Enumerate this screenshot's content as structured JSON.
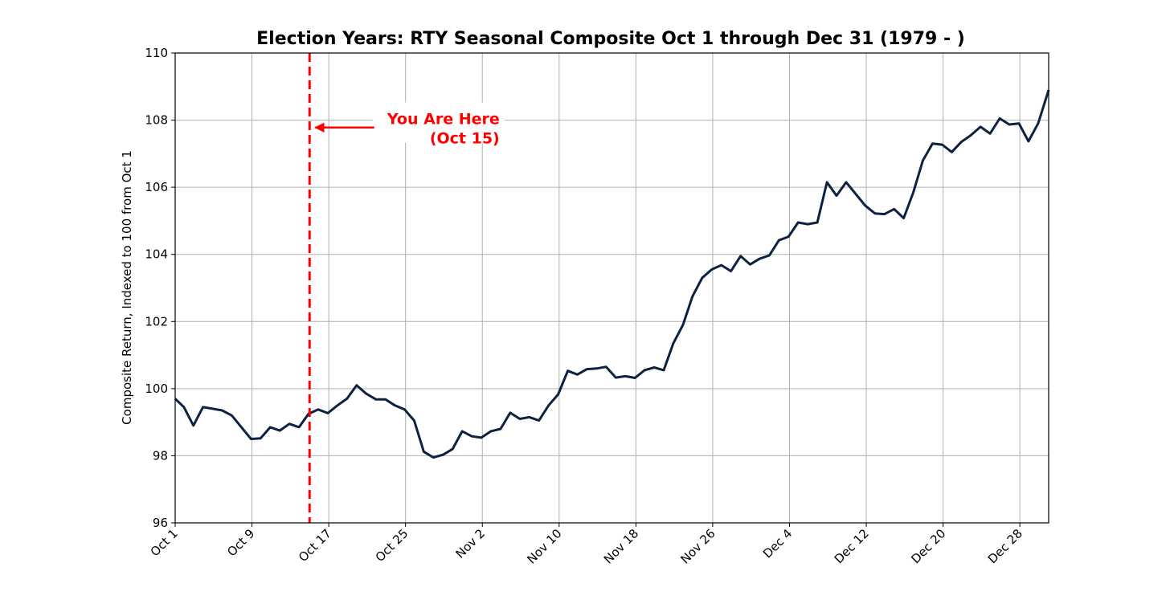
{
  "chart_data": {
    "type": "line",
    "title": "Election Years: RTY Seasonal Composite Oct 1 through Dec 31 (1979 - )",
    "xlabel": "",
    "ylabel": "Composite Return, Indexed to 100 from Oct 1",
    "ylim": [
      96,
      110
    ],
    "yticks": [
      96,
      98,
      100,
      102,
      104,
      106,
      108,
      110
    ],
    "xlim": [
      0,
      91
    ],
    "xticks": [
      {
        "x": 0,
        "label": "Oct 1"
      },
      {
        "x": 8,
        "label": "Oct 9"
      },
      {
        "x": 16,
        "label": "Oct 17"
      },
      {
        "x": 24,
        "label": "Oct 25"
      },
      {
        "x": 32,
        "label": "Nov 2"
      },
      {
        "x": 40,
        "label": "Nov 10"
      },
      {
        "x": 48,
        "label": "Nov 18"
      },
      {
        "x": 56,
        "label": "Nov 26"
      },
      {
        "x": 64,
        "label": "Dec 4"
      },
      {
        "x": 72,
        "label": "Dec 12"
      },
      {
        "x": 80,
        "label": "Dec 20"
      },
      {
        "x": 88,
        "label": "Dec 28"
      }
    ],
    "grid": true,
    "series": [
      {
        "color": "#0d2240",
        "points": [
          [
            0,
            99.7
          ],
          [
            0.9,
            99.45
          ],
          [
            1.9,
            98.9
          ],
          [
            2.9,
            99.45
          ],
          [
            3.9,
            99.4
          ],
          [
            4.9,
            99.35
          ],
          [
            5.9,
            99.2
          ],
          [
            6.9,
            98.85
          ],
          [
            7.9,
            98.5
          ],
          [
            8.9,
            98.52
          ],
          [
            9.9,
            98.85
          ],
          [
            10.9,
            98.75
          ],
          [
            11.9,
            98.95
          ],
          [
            12.9,
            98.85
          ],
          [
            13.9,
            99.25
          ],
          [
            14.9,
            99.38
          ],
          [
            15.9,
            99.27
          ],
          [
            16.9,
            99.5
          ],
          [
            17.9,
            99.7
          ],
          [
            18.9,
            100.1
          ],
          [
            19.9,
            99.85
          ],
          [
            20.9,
            99.68
          ],
          [
            21.9,
            99.68
          ],
          [
            22.9,
            99.5
          ],
          [
            23.9,
            99.38
          ],
          [
            24.9,
            99.05
          ],
          [
            25.9,
            98.12
          ],
          [
            26.9,
            97.95
          ],
          [
            27.9,
            98.03
          ],
          [
            28.9,
            98.2
          ],
          [
            29.9,
            98.73
          ],
          [
            30.9,
            98.58
          ],
          [
            31.9,
            98.54
          ],
          [
            32.9,
            98.73
          ],
          [
            33.9,
            98.8
          ],
          [
            34.9,
            99.28
          ],
          [
            35.9,
            99.1
          ],
          [
            36.9,
            99.15
          ],
          [
            37.9,
            99.05
          ],
          [
            38.9,
            99.5
          ],
          [
            39.9,
            99.83
          ],
          [
            40.9,
            100.53
          ],
          [
            41.9,
            100.42
          ],
          [
            42.9,
            100.58
          ],
          [
            43.9,
            100.6
          ],
          [
            44.9,
            100.65
          ],
          [
            45.9,
            100.33
          ],
          [
            46.9,
            100.37
          ],
          [
            47.9,
            100.32
          ],
          [
            48.9,
            100.55
          ],
          [
            49.9,
            100.63
          ],
          [
            50.9,
            100.55
          ],
          [
            51.9,
            101.35
          ],
          [
            52.9,
            101.9
          ],
          [
            53.9,
            102.75
          ],
          [
            54.9,
            103.3
          ],
          [
            55.9,
            103.55
          ],
          [
            56.9,
            103.68
          ],
          [
            57.9,
            103.5
          ],
          [
            58.9,
            103.95
          ],
          [
            59.9,
            103.7
          ],
          [
            60.9,
            103.87
          ],
          [
            61.9,
            103.97
          ],
          [
            62.9,
            104.42
          ],
          [
            63.9,
            104.53
          ],
          [
            64.9,
            104.95
          ],
          [
            65.9,
            104.9
          ],
          [
            66.9,
            104.95
          ],
          [
            67.9,
            106.15
          ],
          [
            68.9,
            105.75
          ],
          [
            69.9,
            106.15
          ],
          [
            70.9,
            105.8
          ],
          [
            71.9,
            105.45
          ],
          [
            72.9,
            105.22
          ],
          [
            73.9,
            105.2
          ],
          [
            74.9,
            105.35
          ],
          [
            75.9,
            105.08
          ],
          [
            76.9,
            105.85
          ],
          [
            77.9,
            106.8
          ],
          [
            78.9,
            107.3
          ],
          [
            79.9,
            107.27
          ],
          [
            80.9,
            107.05
          ],
          [
            81.9,
            107.35
          ],
          [
            82.9,
            107.55
          ],
          [
            83.9,
            107.8
          ],
          [
            84.9,
            107.6
          ],
          [
            85.9,
            108.05
          ],
          [
            86.9,
            107.87
          ],
          [
            87.9,
            107.9
          ],
          [
            88.9,
            107.37
          ],
          [
            89.9,
            107.9
          ],
          [
            91,
            108.9
          ]
        ]
      }
    ],
    "annotations": [
      {
        "type": "vline",
        "x": 14,
        "color": "#ff0000",
        "style": "dashed"
      },
      {
        "type": "arrow-text",
        "lines": [
          "You Are Here",
          "(Oct 15)"
        ],
        "text_x": 33.8,
        "text_y": 108,
        "arrow_to_x": 14.6,
        "arrow_to_y": 107.78,
        "color": "#ff0000"
      }
    ]
  }
}
